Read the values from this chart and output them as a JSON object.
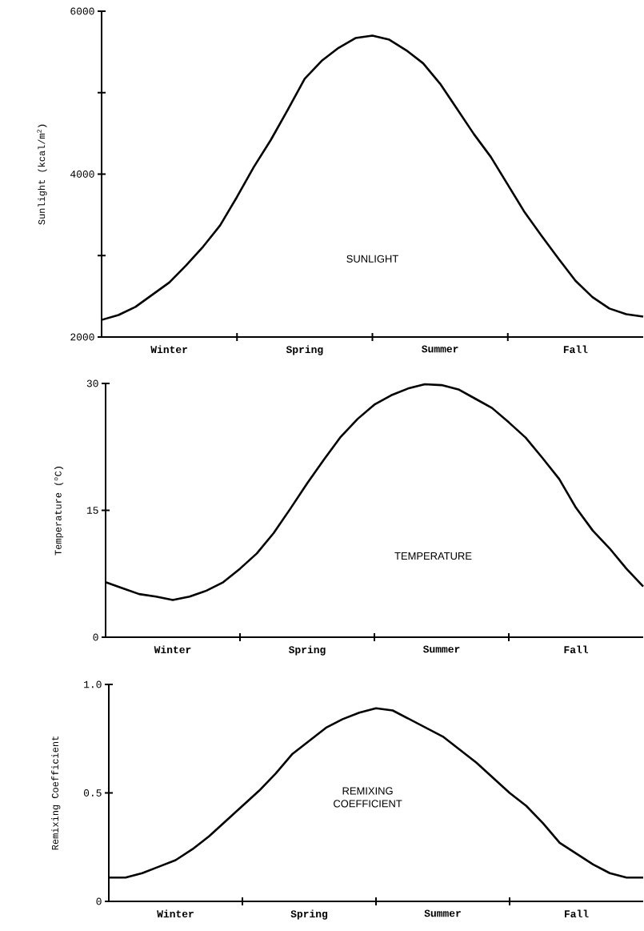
{
  "chart_data": [
    {
      "type": "line",
      "ylabel": "Sunlight (kcal/m$^{2}$)",
      "categories": [
        null,
        null,
        null,
        null,
        "Winter",
        null,
        null,
        null,
        null,
        null,
        null,
        null,
        "Spring",
        null,
        null,
        null,
        null,
        null,
        null,
        null,
        "Summer",
        null,
        null,
        null,
        null,
        null,
        null,
        null,
        "Fall",
        null,
        null,
        null,
        null
      ],
      "ylim": [
        2000,
        6000
      ],
      "yticks": [
        2000,
        {
          "value": 3000,
          "label": null
        },
        4000,
        {
          "value": 5000,
          "label": null
        },
        6000
      ],
      "series": [
        {
          "name": "SUNLIGHT",
          "color": "#000000",
          "values": [
            2210,
            2270,
            2370,
            2520,
            2670,
            2880,
            3110,
            3370,
            3720,
            4090,
            4420,
            4790,
            5170,
            5390,
            5550,
            5670,
            5700,
            5650,
            5520,
            5360,
            5110,
            4800,
            4490,
            4210,
            3870,
            3530,
            3240,
            2960,
            2690,
            2490,
            2350,
            2280,
            2250
          ]
        }
      ]
    },
    {
      "type": "line",
      "ylabel": "Temperature ($^{o}$C)",
      "categories": [
        null,
        null,
        null,
        null,
        "Winter",
        null,
        null,
        null,
        null,
        null,
        null,
        null,
        "Spring",
        null,
        null,
        null,
        null,
        null,
        null,
        null,
        "Summer",
        null,
        null,
        null,
        null,
        null,
        null,
        null,
        "Fall",
        null,
        null,
        null,
        null
      ],
      "ylim": [
        0,
        30
      ],
      "yticks": [
        0,
        15,
        30
      ],
      "series": [
        {
          "name": "TEMPERATURE",
          "color": "#000000",
          "values": [
            6.5,
            5.8,
            5.1,
            4.8,
            4.4,
            4.8,
            5.5,
            6.5,
            8.1,
            9.9,
            12.3,
            15.2,
            18.2,
            21.0,
            23.7,
            25.8,
            27.5,
            28.6,
            29.4,
            29.9,
            29.8,
            29.3,
            28.2,
            27.1,
            25.4,
            23.6,
            21.2,
            18.7,
            15.3,
            12.6,
            10.5,
            8.1,
            6.0
          ]
        }
      ]
    },
    {
      "type": "line",
      "ylabel": "Remixing Coefficient",
      "categories": [
        null,
        null,
        null,
        null,
        "Winter",
        null,
        null,
        null,
        null,
        null,
        null,
        null,
        "Spring",
        null,
        null,
        null,
        null,
        null,
        null,
        null,
        "Summer",
        null,
        null,
        null,
        null,
        null,
        null,
        null,
        "Fall",
        null,
        null,
        null,
        null
      ],
      "ylim": [
        0,
        1.0
      ],
      "yticks": [
        0,
        0.5,
        {
          "value": 1.0,
          "label": "1.0"
        }
      ],
      "series": [
        {
          "name": "REMIXING COEFFICIENT",
          "color": "#000000",
          "values": [
            0.11,
            0.11,
            0.13,
            0.16,
            0.19,
            0.24,
            0.3,
            0.37,
            0.44,
            0.51,
            0.59,
            0.68,
            0.74,
            0.8,
            0.84,
            0.87,
            0.89,
            0.88,
            0.84,
            0.8,
            0.76,
            0.7,
            0.64,
            0.57,
            0.5,
            0.44,
            0.36,
            0.27,
            0.22,
            0.17,
            0.13,
            0.11,
            0.11
          ]
        }
      ]
    }
  ]
}
